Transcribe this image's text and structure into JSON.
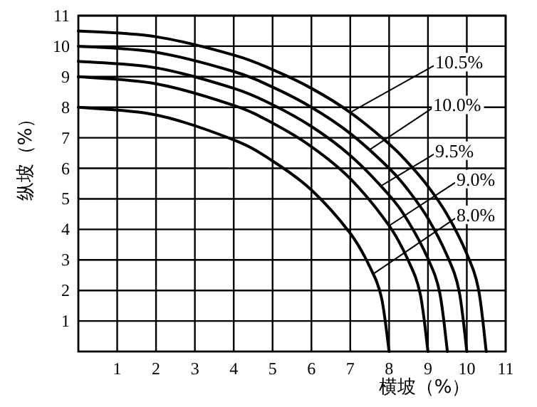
{
  "chart_data": {
    "type": "line",
    "xlabel": "横坡（%）",
    "ylabel": "纵坡（%）",
    "xlim": [
      0,
      11
    ],
    "ylim": [
      0,
      11
    ],
    "xticks": [
      1,
      2,
      3,
      4,
      5,
      6,
      7,
      8,
      9,
      10,
      11
    ],
    "yticks": [
      1,
      2,
      3,
      4,
      5,
      6,
      7,
      8,
      9,
      10,
      11
    ],
    "grid": true,
    "marker": "none",
    "line_style": "solid",
    "series": [
      {
        "color": "#000000",
        "x": [
          0,
          2,
          4,
          5,
          6,
          7,
          8,
          8.5,
          9,
          9.5,
          10,
          10.3,
          10.5
        ],
        "values": [
          10.5,
          10.31,
          9.71,
          9.23,
          8.62,
          7.83,
          6.8,
          6.16,
          5.41,
          4.47,
          3.2,
          2.04,
          0
        ]
      },
      {
        "color": "#000000",
        "x": [
          0,
          2,
          4,
          5,
          6,
          7,
          8,
          8.5,
          9,
          9.5,
          9.8,
          10
        ],
        "values": [
          10,
          9.8,
          9.17,
          8.66,
          8,
          7.14,
          6,
          5.27,
          4.36,
          3.12,
          1.99,
          0
        ]
      },
      {
        "color": "#000000",
        "x": [
          0,
          2,
          4,
          5,
          6,
          7,
          8,
          8.5,
          9,
          9.3,
          9.5
        ],
        "values": [
          9.5,
          9.29,
          8.62,
          8.08,
          7.37,
          6.42,
          5.12,
          4.24,
          3.04,
          1.94,
          0
        ]
      },
      {
        "color": "#000000",
        "x": [
          0,
          2,
          4,
          5,
          6,
          7,
          8,
          8.5,
          8.8,
          9
        ],
        "values": [
          9,
          8.77,
          8.06,
          7.48,
          6.71,
          5.66,
          4.12,
          2.96,
          1.89,
          0
        ]
      },
      {
        "color": "#000000",
        "x": [
          0,
          2,
          4,
          5,
          6,
          7,
          7.5,
          7.8,
          8
        ],
        "values": [
          8,
          7.75,
          6.93,
          6.24,
          5.29,
          3.87,
          2.78,
          1.78,
          0
        ]
      }
    ],
    "annotations": [
      {
        "text": "10.5%",
        "x": 7,
        "y": 7.83
      },
      {
        "text": "10.0%",
        "x": 7.5,
        "y": 6.61
      },
      {
        "text": "9.5%",
        "x": 7.8,
        "y": 5.43
      },
      {
        "text": "9.0%",
        "x": 8,
        "y": 4.12
      },
      {
        "text": "8.0%",
        "x": 7.6,
        "y": 2.55
      }
    ]
  }
}
